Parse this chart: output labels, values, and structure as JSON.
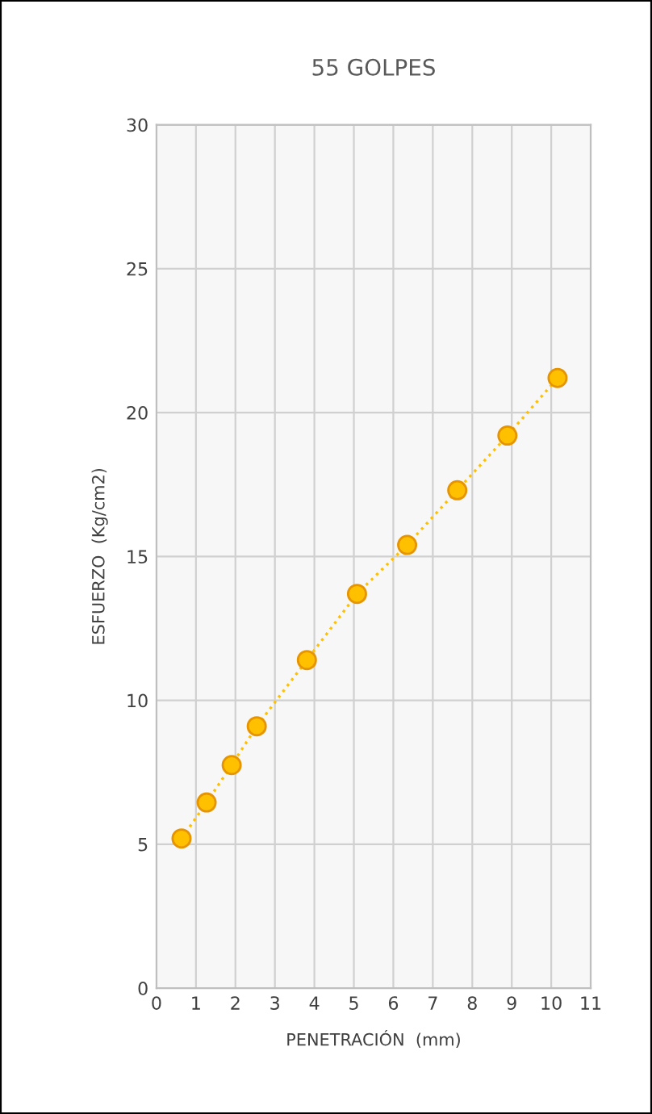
{
  "chart_data": {
    "type": "line",
    "title": "55 GOLPES",
    "xlabel": "PENETRACIÓN  (mm)",
    "ylabel": "ESFUERZO  (Kg/cm2)",
    "x": [
      0.635,
      1.27,
      1.905,
      2.54,
      3.81,
      5.08,
      6.35,
      7.62,
      8.89,
      10.16
    ],
    "series": [
      {
        "color": "#ffc000",
        "values": [
          5.2,
          6.45,
          7.75,
          9.1,
          11.4,
          13.7,
          15.4,
          17.3,
          19.2,
          21.2
        ]
      }
    ],
    "xlim": [
      0,
      11
    ],
    "xticks": [
      0,
      1,
      2,
      3,
      4,
      5,
      6,
      7,
      8,
      9,
      10,
      11
    ],
    "ylim": [
      0,
      30
    ],
    "yticks": [
      0,
      5,
      10,
      15,
      20,
      25,
      30
    ],
    "grid": true,
    "marker": "circle",
    "line_style": "dotted",
    "legend": false
  }
}
